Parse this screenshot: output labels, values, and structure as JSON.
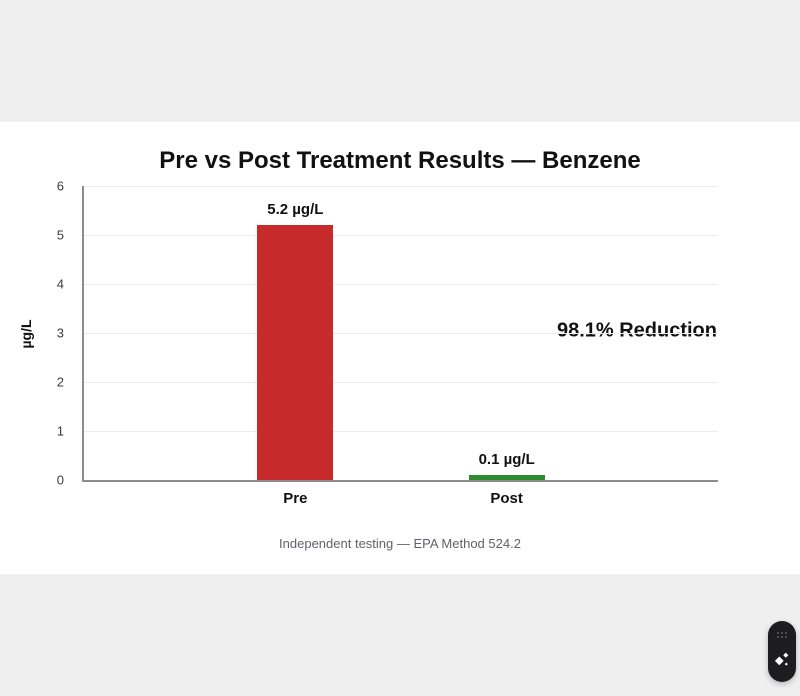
{
  "page": {
    "background": "#ffffff",
    "top_band_color": "#efefef",
    "bottom_band_color": "#efefef"
  },
  "chart_data": {
    "type": "bar",
    "title": "Pre vs Post Treatment Results — Benzene",
    "categories": [
      "Pre",
      "Post"
    ],
    "values": [
      5.2,
      0.1
    ],
    "bar_labels": [
      "5.2 µg/L",
      "0.1 µg/L"
    ],
    "bar_colors": [
      "#c62a2a",
      "#2e8b2e"
    ],
    "xlabel": "",
    "ylabel": "µg/L",
    "ylim": [
      0,
      6
    ],
    "yticks": [
      0,
      1,
      2,
      3,
      4,
      5,
      6
    ],
    "grid": true,
    "legend": false,
    "annotation": {
      "text": "98.1% Reduction",
      "y_value": 3.05,
      "align": "right"
    }
  },
  "caption": "Independent testing — EPA Method 524.2",
  "assistant_widget": {
    "background": "#1d1d1f",
    "icons": [
      "grip-dots-icon",
      "sparkle-icon"
    ]
  }
}
